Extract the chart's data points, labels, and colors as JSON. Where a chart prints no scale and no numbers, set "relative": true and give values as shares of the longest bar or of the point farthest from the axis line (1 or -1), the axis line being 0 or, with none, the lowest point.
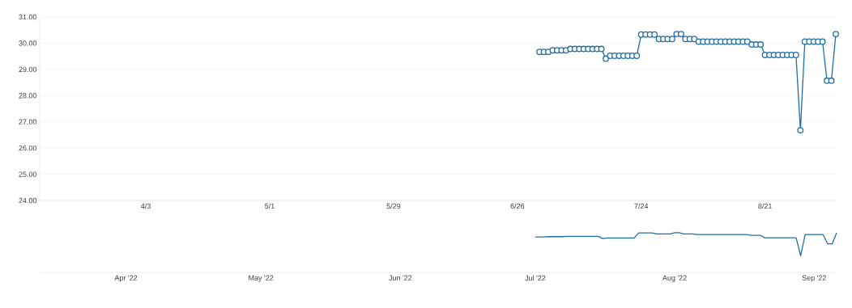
{
  "chart_data": [
    {
      "type": "line",
      "color": "#1f6fa8",
      "marker": "circle",
      "grid": "y",
      "xlim": [
        "2022-03-10",
        "2022-09-06"
      ],
      "xticks": [
        {
          "value": "2022-04-03",
          "label": "4/3"
        },
        {
          "value": "2022-05-01",
          "label": "5/1"
        },
        {
          "value": "2022-05-29",
          "label": "5/29"
        },
        {
          "value": "2022-06-26",
          "label": "6/26"
        },
        {
          "value": "2022-07-24",
          "label": "7/24"
        },
        {
          "value": "2022-08-21",
          "label": "8/21"
        }
      ],
      "ylim": [
        24,
        31
      ],
      "yticks": [
        {
          "value": 24,
          "label": "24.00"
        },
        {
          "value": 25,
          "label": "25.00"
        },
        {
          "value": 26,
          "label": "26.00"
        },
        {
          "value": 27,
          "label": "27.00"
        },
        {
          "value": 28,
          "label": "28.00"
        },
        {
          "value": 29,
          "label": "29.00"
        },
        {
          "value": 30,
          "label": "30.00"
        },
        {
          "value": 31,
          "label": "31.00"
        }
      ],
      "x": [
        "2022-07-01",
        "2022-07-02",
        "2022-07-03",
        "2022-07-04",
        "2022-07-05",
        "2022-07-06",
        "2022-07-07",
        "2022-07-08",
        "2022-07-09",
        "2022-07-10",
        "2022-07-11",
        "2022-07-12",
        "2022-07-13",
        "2022-07-14",
        "2022-07-15",
        "2022-07-16",
        "2022-07-17",
        "2022-07-18",
        "2022-07-19",
        "2022-07-20",
        "2022-07-21",
        "2022-07-22",
        "2022-07-23",
        "2022-07-24",
        "2022-07-25",
        "2022-07-26",
        "2022-07-27",
        "2022-07-28",
        "2022-07-29",
        "2022-07-30",
        "2022-07-31",
        "2022-08-01",
        "2022-08-02",
        "2022-08-03",
        "2022-08-04",
        "2022-08-05",
        "2022-08-06",
        "2022-08-07",
        "2022-08-08",
        "2022-08-09",
        "2022-08-10",
        "2022-08-11",
        "2022-08-12",
        "2022-08-13",
        "2022-08-14",
        "2022-08-15",
        "2022-08-16",
        "2022-08-17",
        "2022-08-18",
        "2022-08-19",
        "2022-08-20",
        "2022-08-21",
        "2022-08-22",
        "2022-08-23",
        "2022-08-24",
        "2022-08-25",
        "2022-08-26",
        "2022-08-27",
        "2022-08-28",
        "2022-08-29",
        "2022-08-30",
        "2022-08-31",
        "2022-09-01",
        "2022-09-02",
        "2022-09-03",
        "2022-09-04",
        "2022-09-05",
        "2022-09-06"
      ],
      "values": [
        29.67,
        29.67,
        29.67,
        29.73,
        29.73,
        29.73,
        29.73,
        29.78,
        29.78,
        29.78,
        29.78,
        29.78,
        29.78,
        29.78,
        29.78,
        29.41,
        29.52,
        29.52,
        29.52,
        29.52,
        29.52,
        29.52,
        29.52,
        30.33,
        30.33,
        30.33,
        30.33,
        30.16,
        30.16,
        30.16,
        30.16,
        30.35,
        30.35,
        30.16,
        30.16,
        30.16,
        30.06,
        30.06,
        30.06,
        30.06,
        30.06,
        30.06,
        30.06,
        30.06,
        30.06,
        30.06,
        30.06,
        30.06,
        29.95,
        29.95,
        29.95,
        29.55,
        29.55,
        29.55,
        29.55,
        29.55,
        29.55,
        29.55,
        29.55,
        26.68,
        30.06,
        30.06,
        30.06,
        30.06,
        30.06,
        28.57,
        28.57,
        30.35
      ]
    },
    {
      "type": "line",
      "color": "#1f6fa8",
      "tick_labels": "x",
      "relative": true,
      "xlim": [
        "2022-03-13",
        "2022-09-06"
      ],
      "xticks": [
        {
          "value": "2022-04-01",
          "label": "Apr '22"
        },
        {
          "value": "2022-05-01",
          "label": "May '22"
        },
        {
          "value": "2022-06-01",
          "label": "Jun '22"
        },
        {
          "value": "2022-07-01",
          "label": "Jul '22"
        },
        {
          "value": "2022-08-01",
          "label": "Aug '22"
        },
        {
          "value": "2022-09-01",
          "label": "Sep '22"
        }
      ],
      "x": [
        "2022-07-01",
        "2022-07-02",
        "2022-07-03",
        "2022-07-04",
        "2022-07-05",
        "2022-07-06",
        "2022-07-07",
        "2022-07-08",
        "2022-07-09",
        "2022-07-10",
        "2022-07-11",
        "2022-07-12",
        "2022-07-13",
        "2022-07-14",
        "2022-07-15",
        "2022-07-16",
        "2022-07-17",
        "2022-07-18",
        "2022-07-19",
        "2022-07-20",
        "2022-07-21",
        "2022-07-22",
        "2022-07-23",
        "2022-07-24",
        "2022-07-25",
        "2022-07-26",
        "2022-07-27",
        "2022-07-28",
        "2022-07-29",
        "2022-07-30",
        "2022-07-31",
        "2022-08-01",
        "2022-08-02",
        "2022-08-03",
        "2022-08-04",
        "2022-08-05",
        "2022-08-06",
        "2022-08-07",
        "2022-08-08",
        "2022-08-09",
        "2022-08-10",
        "2022-08-11",
        "2022-08-12",
        "2022-08-13",
        "2022-08-14",
        "2022-08-15",
        "2022-08-16",
        "2022-08-17",
        "2022-08-18",
        "2022-08-19",
        "2022-08-20",
        "2022-08-21",
        "2022-08-22",
        "2022-08-23",
        "2022-08-24",
        "2022-08-25",
        "2022-08-26",
        "2022-08-27",
        "2022-08-28",
        "2022-08-29",
        "2022-08-30",
        "2022-08-31",
        "2022-09-01",
        "2022-09-02",
        "2022-09-03",
        "2022-09-04",
        "2022-09-05",
        "2022-09-06"
      ],
      "values": [
        0.893,
        0.893,
        0.893,
        0.902,
        0.902,
        0.902,
        0.902,
        0.91,
        0.91,
        0.91,
        0.91,
        0.91,
        0.91,
        0.91,
        0.91,
        0.852,
        0.869,
        0.869,
        0.869,
        0.869,
        0.869,
        0.869,
        0.869,
        0.997,
        0.997,
        0.997,
        0.997,
        0.97,
        0.97,
        0.97,
        0.97,
        1,
        1,
        0.97,
        0.97,
        0.97,
        0.954,
        0.954,
        0.954,
        0.954,
        0.954,
        0.954,
        0.954,
        0.954,
        0.954,
        0.954,
        0.954,
        0.954,
        0.937,
        0.937,
        0.937,
        0.874,
        0.874,
        0.874,
        0.874,
        0.874,
        0.874,
        0.874,
        0.874,
        0.422,
        0.954,
        0.954,
        0.954,
        0.954,
        0.954,
        0.72,
        0.72,
        1
      ]
    }
  ]
}
